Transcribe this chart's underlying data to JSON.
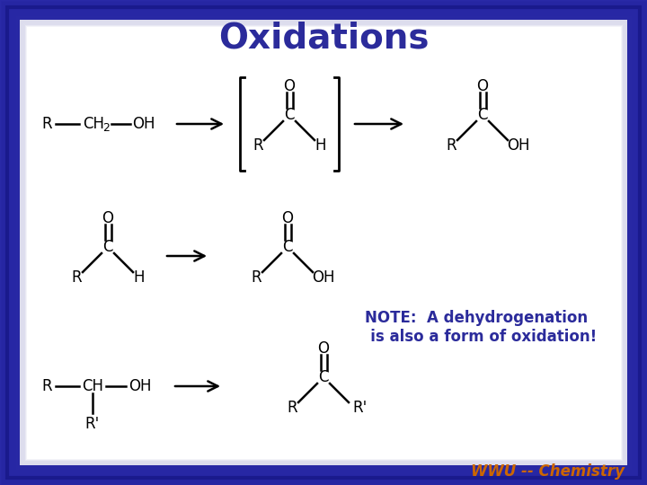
{
  "title": "Oxidations",
  "title_color": "#2B2B9B",
  "title_fontsize": 28,
  "bg_color": "#FFFFFF",
  "border_outer_color": "#1A1A8C",
  "border_inner_color": "#3B3BBB",
  "note_text": "NOTE:  A dehydrogenation\n   is also a form of oxidation!",
  "note_color": "#2B2B9B",
  "note_fontsize": 12,
  "footer_text": "WWU -- Chemistry",
  "footer_color": "#CC6600",
  "footer_fontsize": 12,
  "chem_color": "#000000",
  "chem_fontsize": 11
}
